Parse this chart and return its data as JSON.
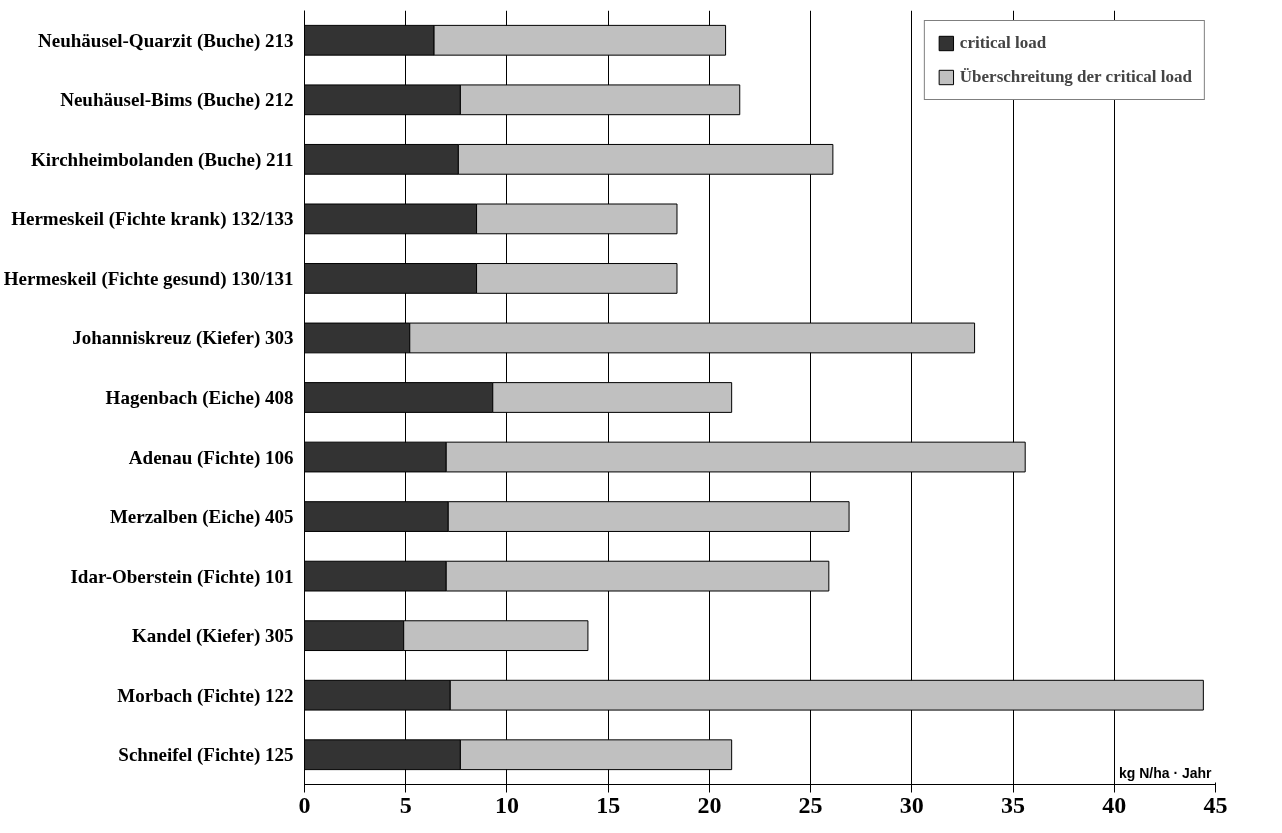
{
  "chart_data": {
    "type": "bar",
    "orientation": "horizontal",
    "stacked": true,
    "categories": [
      "Neuhäusel-Quarzit (Buche) 213",
      "Neuhäusel-Bims (Buche) 212",
      "Kirchheimbolanden (Buche) 211",
      "Hermeskeil (Fichte krank) 132/133",
      "Hermeskeil (Fichte gesund) 130/131",
      "Johanniskreuz (Kiefer) 303",
      "Hagenbach (Eiche) 408",
      "Adenau (Fichte) 106",
      "Merzalben (Eiche) 405",
      "Idar-Oberstein (Fichte) 101",
      "Kandel (Kiefer) 305",
      "Morbach (Fichte) 122",
      "Schneifel (Fichte) 125"
    ],
    "series": [
      {
        "name": "critical load",
        "color": "#333333",
        "values": [
          6.4,
          7.7,
          7.6,
          8.5,
          8.5,
          5.2,
          9.3,
          7.0,
          7.1,
          7.0,
          4.9,
          7.2,
          7.7
        ]
      },
      {
        "name": "Überschreitung der critical load",
        "color": "#c0c0c0",
        "values": [
          14.4,
          13.8,
          18.5,
          9.9,
          9.9,
          27.9,
          11.8,
          28.6,
          19.8,
          18.9,
          9.1,
          37.2,
          13.4
        ]
      }
    ],
    "xlabel": "kg N/ha · Jahr",
    "xlim": [
      0,
      45
    ],
    "xticks": [
      0,
      5,
      10,
      15,
      20,
      25,
      30,
      35,
      40,
      45
    ],
    "grid": "x",
    "legend": "top right"
  }
}
